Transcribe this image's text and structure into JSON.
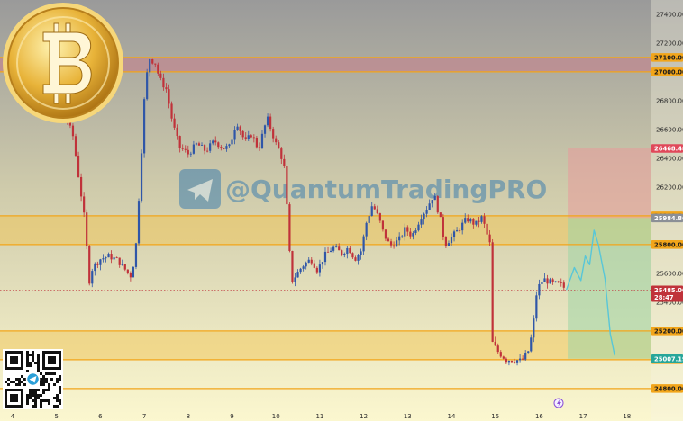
{
  "watermark": {
    "handle": "@QuantumTradingPRO"
  },
  "colors": {
    "bg_top": "#9a9a9a",
    "bg_bottom": "#fbf7cf",
    "level": "#f2a51a",
    "zone": "#f3c44a",
    "resist_band": "#c77b8a",
    "up": "#2f56a8",
    "down": "#c0323a",
    "forecast": "#58c6d8",
    "stop_zone": "#e79a9a",
    "target_zone": "#9fd6a6",
    "badge_red": "#e0485a",
    "badge_green": "#27a69a",
    "badge_gray": "#8b8f96",
    "watermark": "#3f7fae"
  },
  "icons": [
    "bitcoin-logo",
    "telegram-icon",
    "qr-code",
    "lightning-icon"
  ],
  "chart_data": {
    "type": "candlestick",
    "title": "",
    "xlabel": "",
    "ylabel": "",
    "ylim": [
      24800,
      27430
    ],
    "x_ticks": [
      "4",
      "5",
      "6",
      "7",
      "8",
      "9",
      "10",
      "11",
      "12",
      "13",
      "14",
      "15",
      "16",
      "17",
      "18"
    ],
    "y_ticks": [
      "27400.00",
      "27200.00",
      "26800.00",
      "26600.00",
      "26400.00",
      "26200.00",
      "25600.00",
      "25400.00"
    ],
    "price_levels": [
      {
        "label": "27100.00",
        "value": 27100
      },
      {
        "label": "27000.00",
        "value": 27000
      },
      {
        "label": "26000.00",
        "value": 26000
      },
      {
        "label": "25801.00",
        "value": 25801
      },
      {
        "label": "25800.00",
        "value": 25800
      },
      {
        "label": "25200.00",
        "value": 25200
      },
      {
        "label": "25000.00",
        "value": 25000
      },
      {
        "label": "24800.00",
        "value": 24800
      }
    ],
    "zones": [
      {
        "from": 27000,
        "to": 27100,
        "kind": "resistance"
      },
      {
        "from": 25800,
        "to": 26000,
        "kind": "supply"
      },
      {
        "from": 25000,
        "to": 25200,
        "kind": "demand"
      }
    ],
    "badges": [
      {
        "label": "26468.48",
        "value": 26468.48,
        "kind": "stop"
      },
      {
        "label": "25984.86",
        "value": 25984.86,
        "kind": "entry"
      },
      {
        "label": "25485.00",
        "value": 25485,
        "sub": "28:47",
        "kind": "last_price"
      },
      {
        "label": "25007.19",
        "value": 25007.19,
        "kind": "target"
      }
    ],
    "position": {
      "entry": 25984.86,
      "stop": 26468.48,
      "target": 25007.19,
      "start_x": 16.65,
      "end_x": 17.7
    },
    "price_path": [
      [
        4.0,
        27200
      ],
      [
        4.5,
        27140
      ],
      [
        4.65,
        27020
      ],
      [
        4.8,
        26920
      ],
      [
        5.0,
        26820
      ],
      [
        5.2,
        26700
      ],
      [
        5.38,
        26550
      ],
      [
        5.5,
        26280
      ],
      [
        5.62,
        26020
      ],
      [
        5.75,
        25550
      ],
      [
        5.82,
        25640
      ],
      [
        6.0,
        25700
      ],
      [
        6.2,
        25720
      ],
      [
        6.4,
        25690
      ],
      [
        6.58,
        25620
      ],
      [
        6.7,
        25580
      ],
      [
        6.8,
        25740
      ],
      [
        6.9,
        26250
      ],
      [
        7.0,
        26800
      ],
      [
        7.1,
        27100
      ],
      [
        7.25,
        27060
      ],
      [
        7.35,
        26950
      ],
      [
        7.5,
        26880
      ],
      [
        7.65,
        26640
      ],
      [
        7.8,
        26480
      ],
      [
        8.0,
        26430
      ],
      [
        8.2,
        26500
      ],
      [
        8.4,
        26450
      ],
      [
        8.6,
        26520
      ],
      [
        8.8,
        26470
      ],
      [
        8.95,
        26480
      ],
      [
        9.1,
        26660
      ],
      [
        9.3,
        26510
      ],
      [
        9.45,
        26570
      ],
      [
        9.6,
        26460
      ],
      [
        9.8,
        26680
      ],
      [
        10.0,
        26500
      ],
      [
        10.1,
        26440
      ],
      [
        10.2,
        26320
      ],
      [
        10.28,
        25910
      ],
      [
        10.35,
        25540
      ],
      [
        10.6,
        25650
      ],
      [
        10.8,
        25700
      ],
      [
        10.95,
        25620
      ],
      [
        11.1,
        25720
      ],
      [
        11.3,
        25780
      ],
      [
        11.5,
        25740
      ],
      [
        11.65,
        25780
      ],
      [
        11.8,
        25700
      ],
      [
        11.95,
        25760
      ],
      [
        12.05,
        25940
      ],
      [
        12.2,
        26080
      ],
      [
        12.35,
        25980
      ],
      [
        12.45,
        25880
      ],
      [
        12.6,
        25790
      ],
      [
        12.8,
        25830
      ],
      [
        12.95,
        25910
      ],
      [
        13.1,
        25860
      ],
      [
        13.3,
        25990
      ],
      [
        13.45,
        26060
      ],
      [
        13.6,
        26150
      ],
      [
        13.75,
        25970
      ],
      [
        13.85,
        25800
      ],
      [
        14.0,
        25850
      ],
      [
        14.15,
        25900
      ],
      [
        14.35,
        25980
      ],
      [
        14.55,
        25940
      ],
      [
        14.7,
        25990
      ],
      [
        14.8,
        25880
      ],
      [
        14.88,
        25800
      ],
      [
        14.93,
        25120
      ],
      [
        15.05,
        25060
      ],
      [
        15.25,
        25000
      ],
      [
        15.45,
        25000
      ],
      [
        15.6,
        24990
      ],
      [
        15.75,
        25060
      ],
      [
        15.85,
        25200
      ],
      [
        15.95,
        25490
      ],
      [
        16.1,
        25560
      ],
      [
        16.3,
        25530
      ],
      [
        16.5,
        25520
      ],
      [
        16.62,
        25485
      ]
    ],
    "forecast": [
      [
        16.62,
        25485
      ],
      [
        16.8,
        25640
      ],
      [
        16.95,
        25550
      ],
      [
        17.05,
        25720
      ],
      [
        17.15,
        25660
      ],
      [
        17.25,
        25900
      ],
      [
        17.35,
        25800
      ],
      [
        17.5,
        25560
      ],
      [
        17.62,
        25180
      ],
      [
        17.72,
        25030
      ]
    ],
    "last_price": 25485
  }
}
